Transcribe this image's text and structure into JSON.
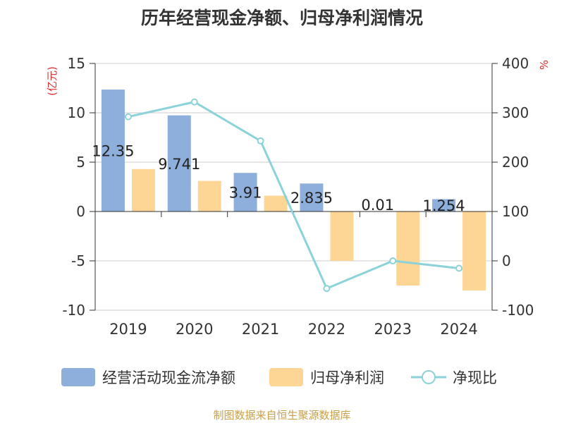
{
  "chart_data": {
    "type": "bar",
    "title": "历年经营现金净额、归母净利润情况",
    "categories": [
      "2019",
      "2020",
      "2021",
      "2022",
      "2023",
      "2024"
    ],
    "y_left": {
      "label": "(亿元)",
      "ylim": [
        -10,
        15
      ],
      "ticks": [
        15,
        10,
        5,
        0,
        -5,
        -10
      ]
    },
    "y_right": {
      "label": "%",
      "ylim": [
        -100,
        400
      ],
      "ticks": [
        400,
        300,
        200,
        100,
        0,
        -100
      ]
    },
    "series": [
      {
        "name": "经营活动现金流净额",
        "kind": "bar",
        "axis": "left",
        "color": "#8eaedb",
        "values": [
          12.35,
          9.741,
          3.91,
          2.835,
          0.01,
          1.254
        ],
        "labels": [
          "12.35",
          "9.741",
          "3.91",
          "2.835",
          "0.01",
          "1.254"
        ]
      },
      {
        "name": "归母净利润",
        "kind": "bar",
        "axis": "left",
        "color": "#fdd696",
        "values": [
          4.3,
          3.1,
          1.6,
          -5.0,
          -7.5,
          -8.0
        ]
      },
      {
        "name": "净现比",
        "kind": "line",
        "axis": "right",
        "color": "#8bd2d9",
        "values": [
          292,
          322,
          243,
          -56,
          0,
          -15
        ]
      }
    ],
    "grid": true,
    "legend": "bottom"
  },
  "source": "制图数据来自恒生聚源数据库"
}
